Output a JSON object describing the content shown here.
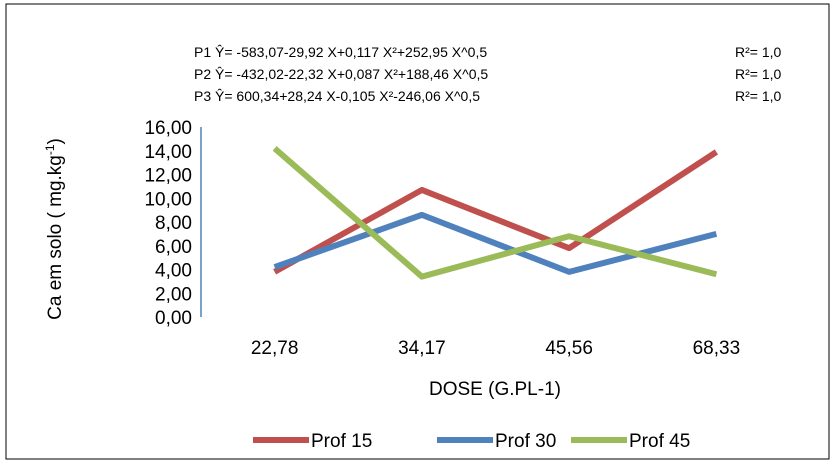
{
  "chart_data": {
    "type": "line",
    "categories": [
      "22,78",
      "34,17",
      "45,56",
      "68,33"
    ],
    "series": [
      {
        "name": "Prof 15",
        "color": "#c0504d",
        "values": [
          3.8,
          10.7,
          5.8,
          13.9
        ]
      },
      {
        "name": "Prof 30",
        "color": "#4f81bd",
        "values": [
          4.2,
          8.6,
          3.8,
          7.0
        ]
      },
      {
        "name": "Prof 45",
        "color": "#9bbb59",
        "values": [
          14.2,
          3.4,
          6.8,
          3.6
        ]
      }
    ],
    "title": "",
    "xlabel": "DOSE (G.PL-1)",
    "ylabel_main": "Ca em solo ( mg.kg",
    "ylabel_sup": "-1",
    "ylabel_end": ")",
    "ylim": [
      0,
      16
    ],
    "yticks": [
      "0,00",
      "2,00",
      "4,00",
      "6,00",
      "8,00",
      "10,00",
      "12,00",
      "14,00",
      "16,00"
    ],
    "legend_position": "bottom",
    "equations": [
      {
        "text": "P1 Ŷ= -583,07-29,92 X+0,117 X²+252,95 X^0,5",
        "r2": "R²= 1,0"
      },
      {
        "text": "P2 Ŷ= -432,02-22,32 X+0,087 X²+188,46 X^0,5",
        "r2": "R²= 1,0"
      },
      {
        "text": "P3 Ŷ= 600,34+28,24 X-0,105 X²-246,06 X^0,5",
        "r2": "R²= 1,0"
      }
    ]
  }
}
